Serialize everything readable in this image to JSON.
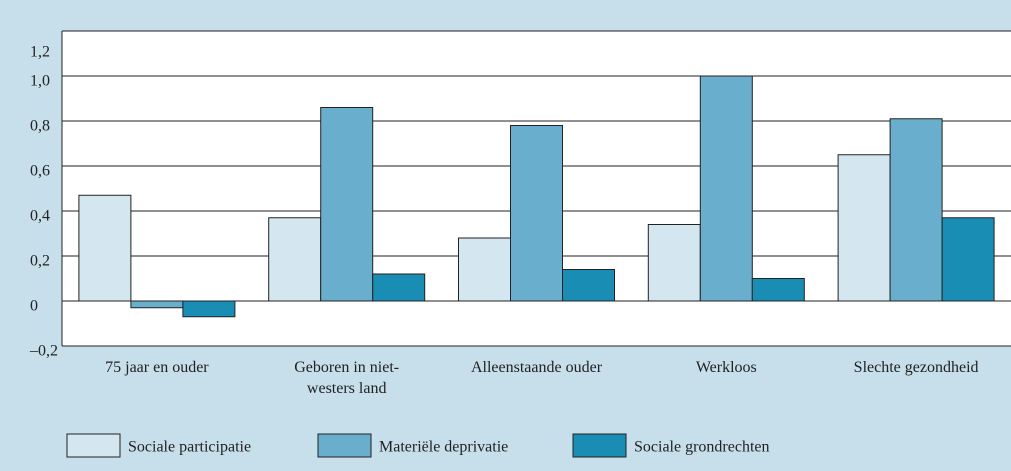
{
  "chart_data": {
    "type": "bar",
    "categories": [
      "75 jaar en ouder",
      "Geboren in niet-westers land",
      "Alleenstaande ouder",
      "Werkloos",
      "Slechte gezondheid"
    ],
    "series": [
      {
        "name": "Sociale participatie",
        "color": "#d4e6ef",
        "values": [
          0.47,
          0.37,
          0.28,
          0.34,
          0.65
        ]
      },
      {
        "name": "Materiële deprivatie",
        "color": "#6aaecd",
        "values": [
          -0.03,
          0.86,
          0.78,
          1.0,
          0.81
        ]
      },
      {
        "name": "Sociale grondrechten",
        "color": "#1a8db5",
        "values": [
          -0.07,
          0.12,
          0.14,
          0.1,
          0.37
        ]
      }
    ],
    "ylim": [
      -0.2,
      1.2
    ],
    "yticks": [
      {
        "value": -0.2,
        "label": "–0,2"
      },
      0,
      {
        "value": 0.2,
        "label": "0,2"
      },
      {
        "value": 0.4,
        "label": "0,4"
      },
      {
        "value": 0.6,
        "label": "0,6"
      },
      {
        "value": 0.8,
        "label": "0,8"
      },
      {
        "value": 1.0,
        "label": "1,0"
      },
      {
        "value": 1.2,
        "label": "1,2"
      }
    ],
    "grid": true,
    "legend": "bottom"
  }
}
